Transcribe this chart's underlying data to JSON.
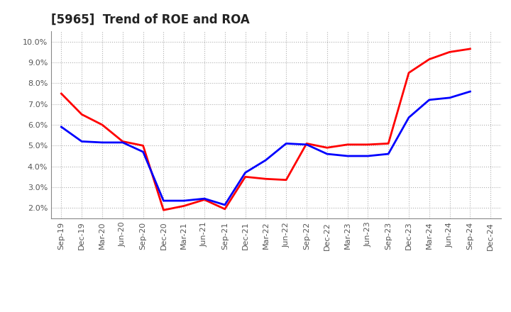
{
  "title": "[5965]  Trend of ROE and ROA",
  "x_labels": [
    "Sep-19",
    "Dec-19",
    "Mar-20",
    "Jun-20",
    "Sep-20",
    "Dec-20",
    "Mar-21",
    "Jun-21",
    "Sep-21",
    "Dec-21",
    "Mar-22",
    "Jun-22",
    "Sep-22",
    "Dec-22",
    "Mar-23",
    "Jun-23",
    "Sep-23",
    "Dec-23",
    "Mar-24",
    "Jun-24",
    "Sep-24",
    "Dec-24"
  ],
  "roe": [
    7.5,
    6.5,
    6.0,
    5.2,
    5.0,
    1.9,
    2.1,
    2.4,
    1.95,
    3.5,
    3.4,
    3.35,
    5.1,
    4.9,
    5.05,
    5.05,
    5.1,
    8.5,
    9.15,
    9.5,
    9.65,
    null
  ],
  "roa": [
    5.9,
    5.2,
    5.15,
    5.15,
    4.7,
    2.35,
    2.35,
    2.45,
    2.15,
    3.7,
    4.3,
    5.1,
    5.05,
    4.6,
    4.5,
    4.5,
    4.6,
    6.35,
    7.2,
    7.3,
    7.6,
    null
  ],
  "roe_color": "#ff0000",
  "roa_color": "#0000ff",
  "ylim": [
    1.5,
    10.5
  ],
  "yticks": [
    2.0,
    3.0,
    4.0,
    5.0,
    6.0,
    7.0,
    8.0,
    9.0,
    10.0
  ],
  "ytick_labels": [
    "2.0%",
    "3.0%",
    "4.0%",
    "5.0%",
    "6.0%",
    "7.0%",
    "8.0%",
    "9.0%",
    "10.0%"
  ],
  "background_color": "#ffffff",
  "grid_color": "#b0b0b0",
  "line_width": 2.0,
  "title_fontsize": 12,
  "tick_fontsize": 8
}
